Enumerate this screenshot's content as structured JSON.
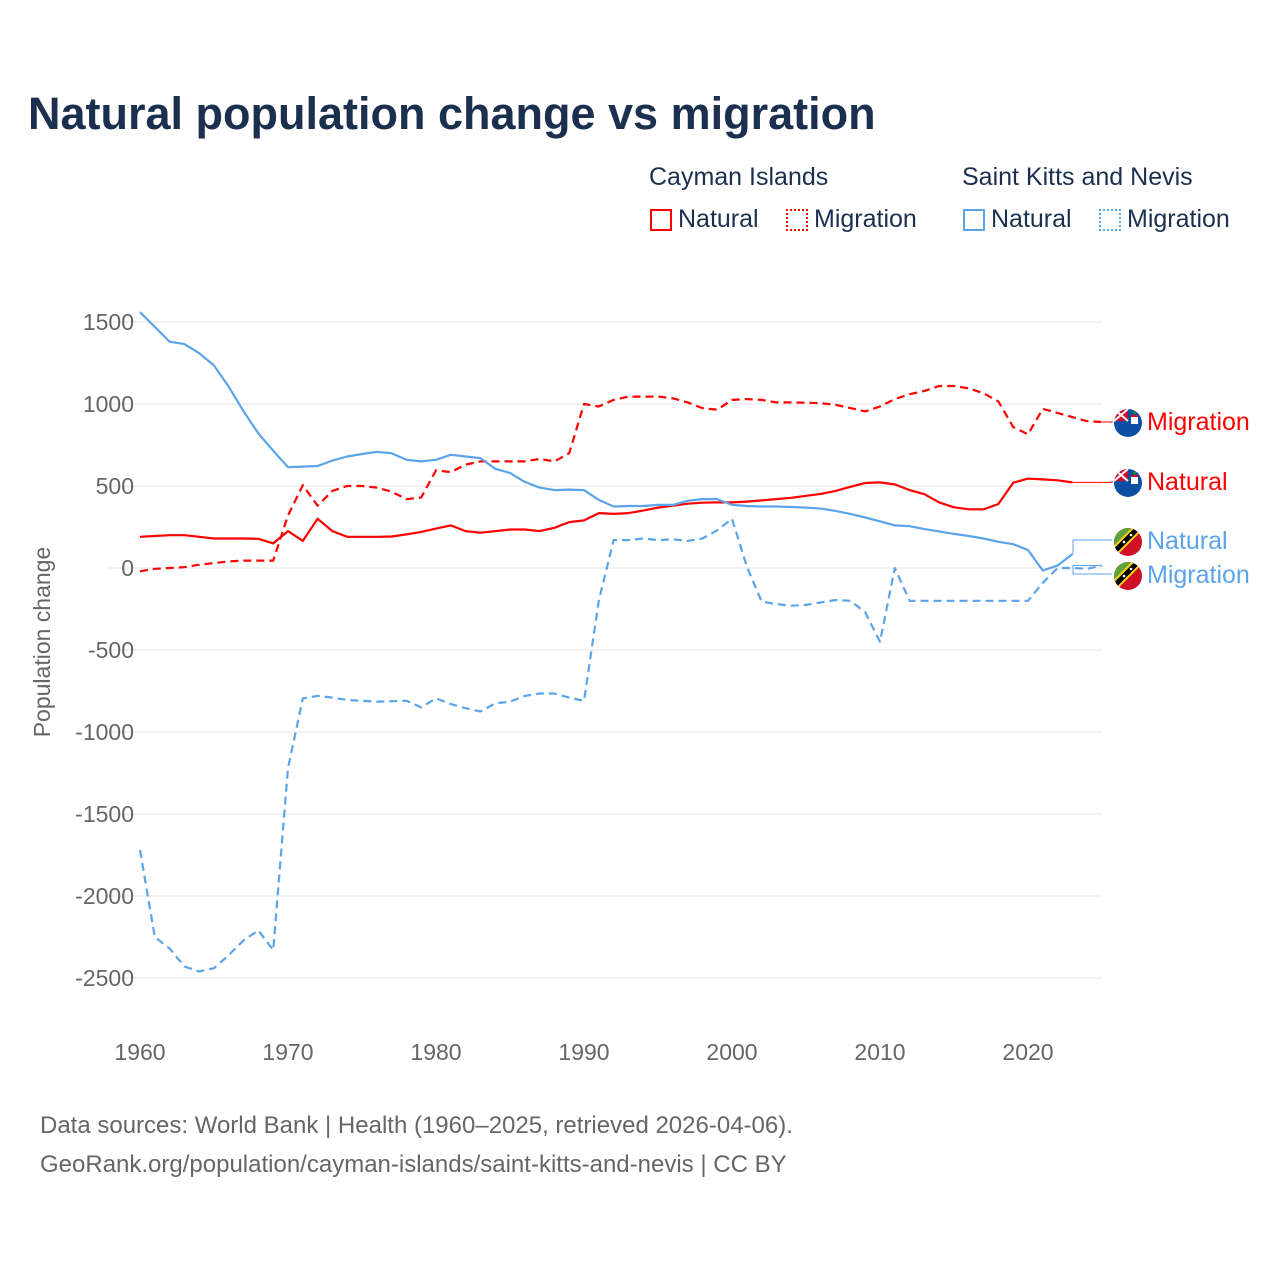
{
  "colors": {
    "cayman": "#ff0000",
    "skn": "#5ba4ea",
    "title": "#1b2f4e",
    "grid": "#e4e4e4",
    "tick": "#666666"
  },
  "legend": {
    "groups": [
      {
        "name": "Cayman Islands",
        "items": [
          "Natural",
          "Migration"
        ]
      },
      {
        "name": "Saint Kitts and Nevis",
        "items": [
          "Natural",
          "Migration"
        ]
      }
    ]
  },
  "footer": {
    "line1": "Data sources: World Bank | Health (1960–2025, retrieved 2026-04-06).",
    "line2": "GeoRank.org/population/cayman-islands/saint-kitts-and-nevis | CC BY"
  },
  "chart_data": {
    "type": "line",
    "title": "Natural population change vs migration",
    "xlabel": "",
    "ylabel": "Population change",
    "xlim": [
      1960,
      2025
    ],
    "ylim": [
      -2700,
      1560
    ],
    "xticks": [
      1960,
      1970,
      1980,
      1990,
      2000,
      2010,
      2020
    ],
    "yticks": [
      1500,
      1000,
      500,
      0,
      -500,
      -1000,
      -1500,
      -2000,
      -2500
    ],
    "grid": true,
    "legend_position": "top-right",
    "x_start": 1960,
    "series": [
      {
        "name": "Cayman Islands Natural",
        "end_label": "Natural",
        "country": "cayman",
        "dashed": false,
        "values": [
          190,
          195,
          200,
          200,
          190,
          180,
          180,
          180,
          178,
          150,
          225,
          165,
          300,
          225,
          190,
          190,
          190,
          192,
          205,
          220,
          240,
          260,
          225,
          215,
          225,
          235,
          235,
          225,
          245,
          280,
          290,
          335,
          330,
          335,
          350,
          368,
          380,
          392,
          398,
          400,
          400,
          405,
          412,
          420,
          428,
          440,
          452,
          470,
          495,
          518,
          522,
          510,
          475,
          450,
          400,
          370,
          358,
          358,
          390,
          520,
          545,
          540,
          535,
          522
        ]
      },
      {
        "name": "Cayman Islands Migration",
        "end_label": "Migration",
        "country": "cayman",
        "dashed": true,
        "values": [
          -20,
          -5,
          0,
          5,
          20,
          30,
          40,
          45,
          45,
          45,
          320,
          505,
          380,
          470,
          500,
          500,
          490,
          465,
          420,
          430,
          595,
          585,
          630,
          650,
          650,
          650,
          650,
          665,
          650,
          700,
          1000,
          985,
          1025,
          1045,
          1045,
          1045,
          1035,
          1010,
          975,
          965,
          1025,
          1030,
          1025,
          1010,
          1010,
          1008,
          1005,
          995,
          975,
          955,
          985,
          1030,
          1060,
          1080,
          1110,
          1110,
          1095,
          1065,
          1015,
          860,
          815,
          970,
          945,
          920,
          895,
          890
        ]
      },
      {
        "name": "Saint Kitts and Nevis Natural",
        "end_label": "Natural",
        "country": "skn",
        "dashed": false,
        "values": [
          1560,
          1470,
          1380,
          1365,
          1310,
          1235,
          1105,
          955,
          820,
          715,
          615,
          618,
          622,
          655,
          680,
          695,
          708,
          700,
          660,
          650,
          660,
          690,
          680,
          670,
          605,
          580,
          525,
          490,
          475,
          478,
          475,
          415,
          375,
          378,
          378,
          385,
          385,
          410,
          420,
          420,
          385,
          378,
          375,
          375,
          372,
          368,
          362,
          348,
          330,
          308,
          285,
          260,
          255,
          237,
          223,
          208,
          195,
          180,
          160,
          145,
          110,
          -15,
          15,
          85
        ]
      },
      {
        "name": "Saint Kitts and Nevis Migration",
        "end_label": "Migration",
        "country": "skn",
        "dashed": true,
        "values": [
          -1720,
          -2250,
          -2320,
          -2430,
          -2460,
          -2440,
          -2360,
          -2270,
          -2210,
          -2330,
          -1220,
          -795,
          -780,
          -790,
          -805,
          -810,
          -815,
          -812,
          -810,
          -850,
          -795,
          -830,
          -855,
          -875,
          -825,
          -815,
          -780,
          -765,
          -765,
          -790,
          -810,
          -200,
          170,
          170,
          180,
          170,
          175,
          165,
          180,
          230,
          300,
          10,
          -205,
          -220,
          -230,
          -225,
          -210,
          -195,
          -200,
          -270,
          -450,
          0,
          -200,
          -200,
          -200,
          -200,
          -200,
          -200,
          -200,
          -200,
          -200,
          -90,
          0,
          0,
          -5,
          15
        ]
      }
    ]
  }
}
